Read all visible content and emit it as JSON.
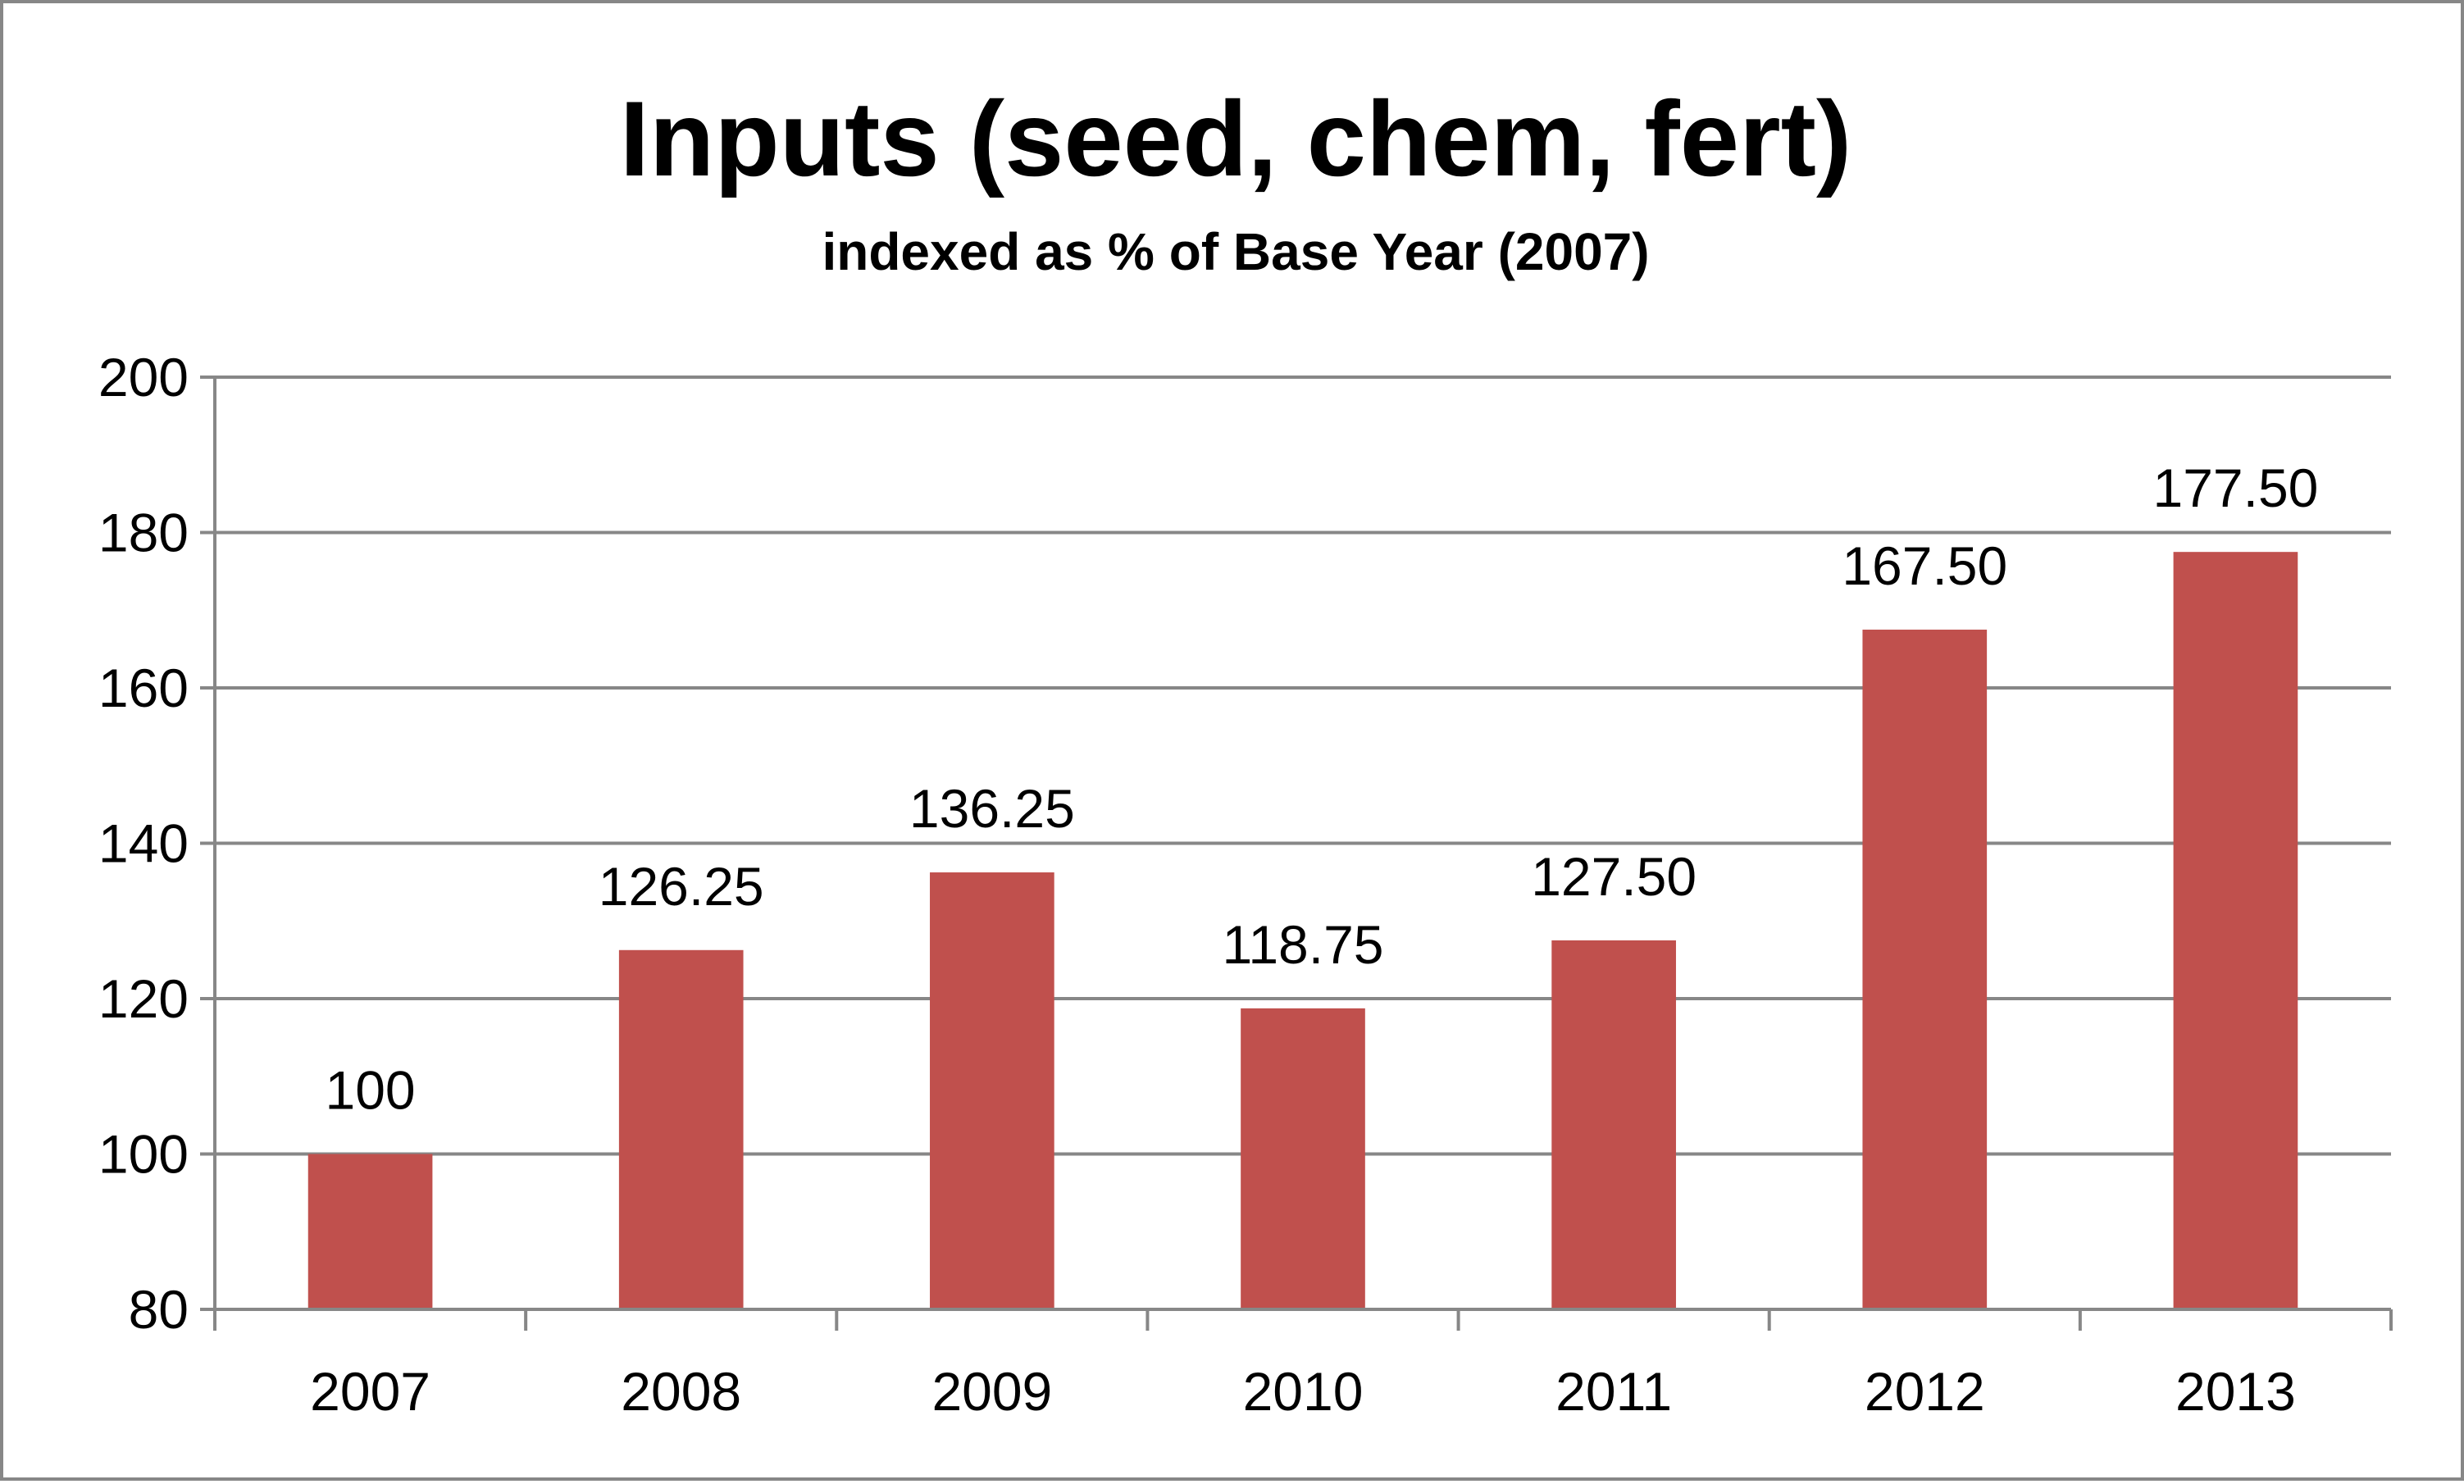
{
  "chart_data": {
    "type": "bar",
    "title": "Inputs (seed, chem, fert)",
    "subtitle": "indexed as % of Base Year (2007)",
    "categories": [
      "2007",
      "2008",
      "2009",
      "2010",
      "2011",
      "2012",
      "2013"
    ],
    "values": [
      100,
      126.25,
      136.25,
      118.75,
      127.5,
      167.5,
      177.5
    ],
    "data_labels": [
      "100",
      "126.25",
      "136.25",
      "118.75",
      "127.50",
      "167.50",
      "177.50"
    ],
    "ylim": [
      80,
      200
    ],
    "yticks": [
      80,
      100,
      120,
      140,
      160,
      180,
      200
    ],
    "xlabel": "",
    "ylabel": "",
    "grid": true,
    "legend": "none",
    "bar_color": "#C0504D",
    "gridline_color": "#878787"
  }
}
